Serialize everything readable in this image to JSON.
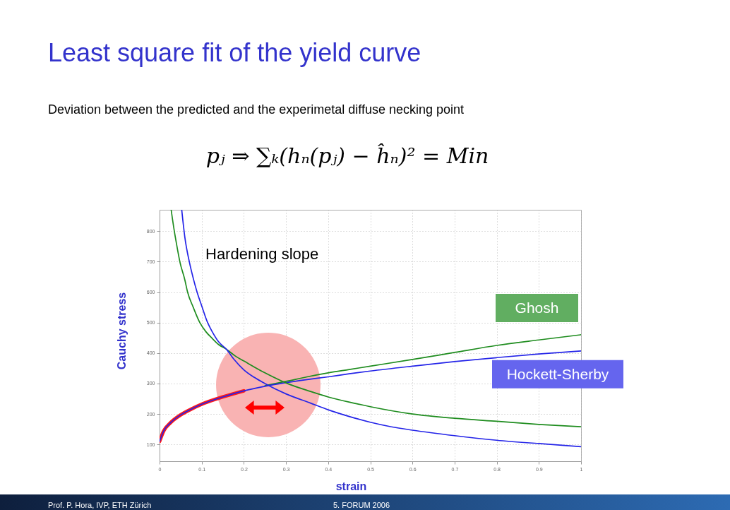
{
  "chart_data": {
    "type": "line",
    "title": "Least square fit of the yield curve",
    "subtitle": "Deviation between the predicted and the experimetal diffuse necking point",
    "xlabel": "strain",
    "ylabel": "Cauchy stress",
    "annotations": [
      "Hardening slope",
      "pⱼ ⇒ ∑ₖ(hₙ(pⱼ) − ĥₙ)² = Min",
      "Prof. P. Hora, IVP, ETH Zürich",
      "5. FORUM 2006"
    ],
    "xlim": [
      0,
      1
    ],
    "ylim": [
      45,
      870
    ],
    "xticks": [
      0,
      0.1,
      0.2,
      0.3,
      0.4,
      0.5,
      0.6,
      0.7,
      0.8,
      0.9,
      1
    ],
    "yticks": [
      100,
      200,
      300,
      400,
      500,
      600,
      700,
      800
    ],
    "grid": true,
    "series": [
      {
        "color": "#ff1a1a",
        "x": [
          0,
          0.01,
          0.025,
          0.05,
          0.075,
          0.1,
          0.15,
          0.2
        ],
        "values": [
          110,
          145,
          170,
          197,
          216,
          232,
          256,
          276
        ]
      },
      {
        "name": "Ghosh",
        "color": "#1e8c1e",
        "x": [
          0.25,
          0.3,
          0.35,
          0.4,
          0.45,
          0.5,
          0.6,
          0.7,
          0.8,
          0.9,
          1
        ],
        "values": [
          293,
          307,
          322,
          335,
          346,
          357,
          379,
          402,
          425,
          443,
          460
        ]
      },
      {
        "name": "Hockett-Sherby",
        "color": "#2424e8",
        "x": [
          0,
          0.01,
          0.025,
          0.05,
          0.075,
          0.1,
          0.15,
          0.2,
          0.25,
          0.3,
          0.35,
          0.4,
          0.45,
          0.5,
          0.6,
          0.7,
          0.8,
          0.9,
          1
        ],
        "values": [
          110,
          145,
          170,
          197,
          216,
          232,
          256,
          276,
          291,
          303,
          313,
          322,
          332,
          341,
          357,
          372,
          385,
          397,
          407
        ]
      },
      {
        "color": "#1e8c1e",
        "x": [
          0.0275,
          0.035,
          0.04,
          0.0486,
          0.06,
          0.0665,
          0.08,
          0.0955,
          0.11,
          0.125,
          0.14,
          0.159,
          0.18,
          0.2,
          0.25,
          0.29,
          0.3,
          0.358,
          0.4,
          0.46,
          0.5,
          0.6,
          0.7,
          0.8,
          0.9,
          1
        ],
        "values": [
          870,
          800,
          760,
          697,
          640,
          600,
          550,
          500,
          470,
          448,
          428,
          412,
          390,
          374,
          335,
          308,
          302,
          274,
          256,
          236,
          224,
          200,
          186,
          176,
          166,
          158
        ]
      },
      {
        "color": "#2424e8",
        "x": [
          0.0526,
          0.06,
          0.071,
          0.08,
          0.089,
          0.1,
          0.114,
          0.125,
          0.14,
          0.159,
          0.175,
          0.2,
          0.225,
          0.25,
          0.3,
          0.358,
          0.4,
          0.45,
          0.5,
          0.55,
          0.6,
          0.7,
          0.8,
          0.9,
          1
        ],
        "values": [
          870,
          780,
          697,
          645,
          600,
          555,
          500,
          470,
          437,
          412,
          382,
          345,
          320,
          300,
          266,
          236,
          214,
          192,
          173,
          158,
          147,
          129,
          114,
          103,
          93
        ]
      }
    ]
  }
}
